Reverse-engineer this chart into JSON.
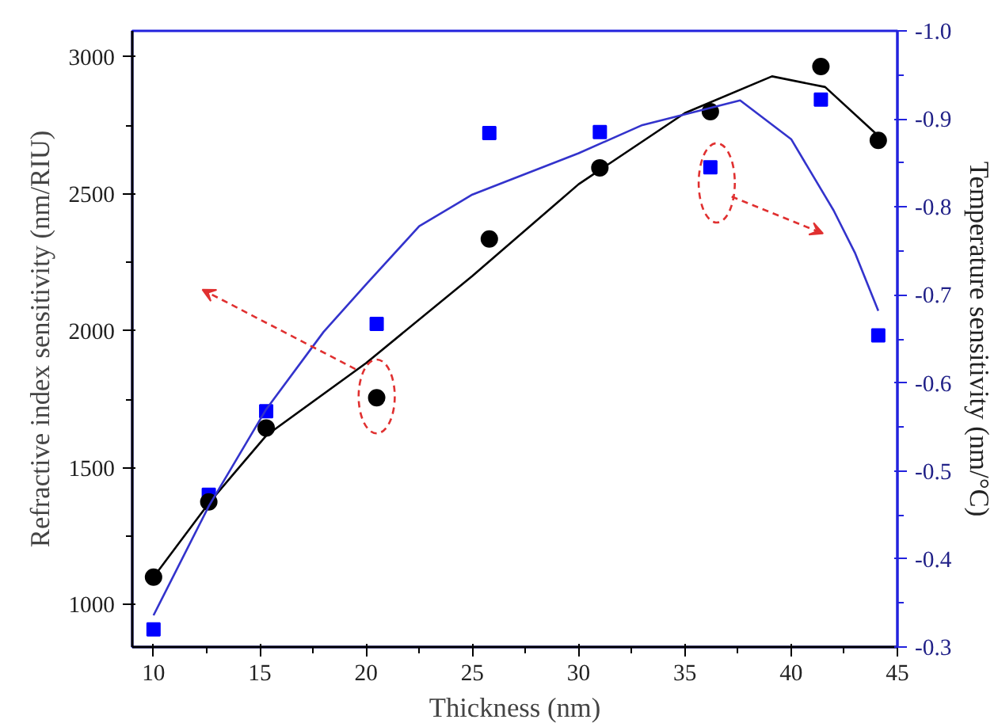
{
  "chart_data": {
    "type": "scatter",
    "xlabel": "Thickness (nm)",
    "ylabel": "Refractive index sensitivity (nm/RIU)",
    "y2label": "Temperature sensitivity (nm/°C)",
    "x": [
      10,
      12.6,
      15.3,
      20.5,
      25.8,
      31.0,
      36.2,
      41.4,
      44.1
    ],
    "xlim": [
      9,
      45
    ],
    "xticks": [
      10,
      15,
      20,
      25,
      30,
      35,
      40,
      45
    ],
    "ylim": [
      845,
      3095
    ],
    "yticks": [
      1000,
      1500,
      2000,
      2500,
      3000
    ],
    "y2lim": [
      -0.3,
      -1.0
    ],
    "y2ticks": [
      -0.3,
      -0.4,
      -0.5,
      -0.6,
      -0.7,
      -0.8,
      -0.9,
      {
        "value": -1.0,
        "label": "-1.0"
      }
    ],
    "grid": false,
    "series": [
      {
        "marker": "square",
        "color": "#0000ff",
        "axis": "y2",
        "values": [
          -0.32,
          -0.473,
          -0.568,
          -0.667,
          -0.884,
          -0.885,
          -0.845,
          -0.922,
          -0.654
        ]
      },
      {
        "marker": "circle",
        "color": "#000000",
        "values": [
          1100,
          1375,
          1645,
          1755,
          2335,
          2595,
          2800,
          2965,
          2695
        ]
      },
      {
        "type": "line",
        "color": "#000000",
        "x": [
          10,
          12.6,
          13.8,
          15.3,
          20,
          25,
          30,
          35,
          39.1,
          41.6,
          44.1
        ],
        "values": [
          1100,
          1370,
          1480,
          1617,
          1882,
          2200,
          2535,
          2795,
          2929,
          2890,
          2712
        ]
      },
      {
        "type": "line",
        "color": "#3333cc",
        "axis": "y2",
        "x": [
          10,
          12.6,
          15.3,
          18,
          20,
          22.5,
          25,
          26.6,
          30,
          33,
          37.6,
          40,
          42,
          43,
          44.1
        ],
        "values": [
          -0.336,
          -0.46,
          -0.57,
          -0.658,
          -0.712,
          -0.778,
          -0.814,
          -0.829,
          -0.861,
          -0.893,
          -0.921,
          -0.877,
          -0.796,
          -0.748,
          -0.682
        ]
      }
    ]
  }
}
